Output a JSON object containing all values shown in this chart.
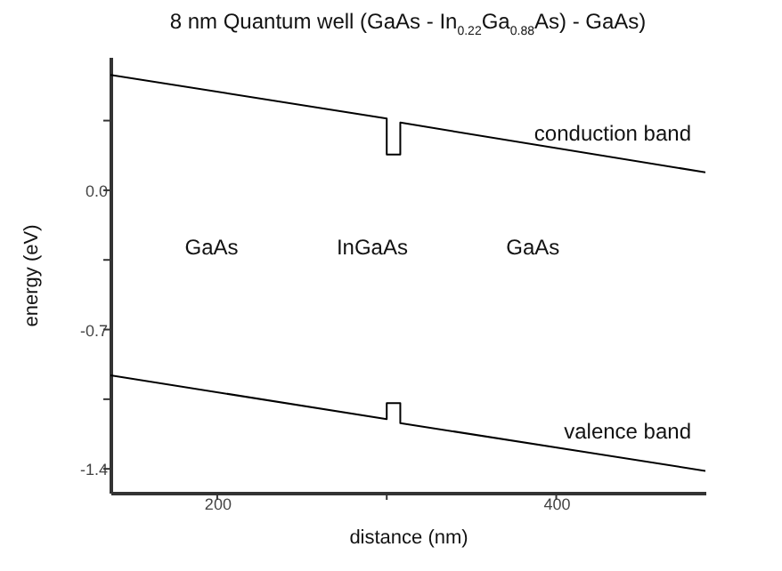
{
  "chart_data": {
    "type": "line",
    "title": "8 nm Quantum well (GaAs  -  In$_{0.22}$Ga$_{0.88}$As)  -  GaAs)",
    "xlabel": "distance (nm)",
    "ylabel": "energy (eV)",
    "x": [
      137,
      300,
      300,
      308,
      308,
      488
    ],
    "series": [
      {
        "name": "conduction band",
        "color": "#000000",
        "values": [
          0.58,
          0.36,
          0.18,
          0.18,
          0.34,
          0.09
        ]
      },
      {
        "name": "valence band",
        "color": "#000000",
        "values": [
          -0.93,
          -1.15,
          -1.07,
          -1.07,
          -1.17,
          -1.41
        ]
      }
    ],
    "annotations": [
      "GaAs",
      "InGaAs",
      "GaAs"
    ],
    "xlim": [
      137,
      488
    ],
    "xticks": [
      200,
      {
        "value": 300,
        "label": null
      },
      400
    ],
    "ylim": [
      -1.52,
      0.67
    ],
    "yticks": [
      {
        "value": 0.35,
        "label": null
      },
      {
        "value": 0,
        "label": "0.0"
      },
      {
        "value": -0.35,
        "label": null
      },
      -0.7,
      {
        "value": -1.05,
        "label": null
      },
      -1.4
    ],
    "grid": false,
    "marker": "none",
    "line_style": "solid"
  }
}
